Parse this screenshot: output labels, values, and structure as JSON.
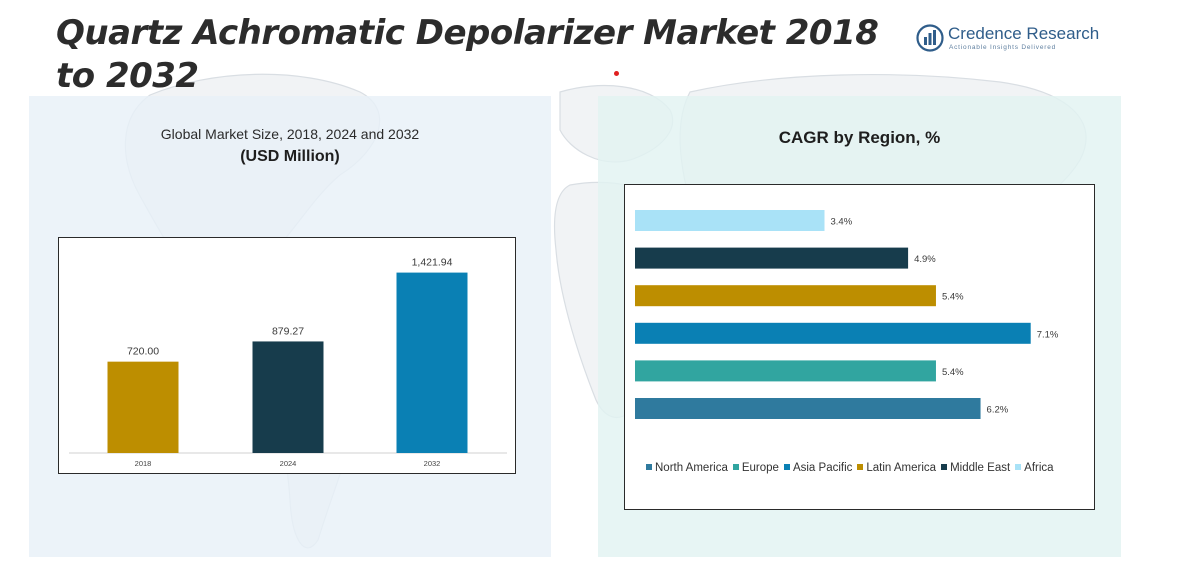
{
  "page": {
    "title": "Quartz Achromatic Depolarizer Market 2018 to 2032"
  },
  "brand": {
    "name": "Credence Research",
    "tagline": "Actionable Insights Delivered",
    "icon": "bar-chart-logo-icon"
  },
  "colors": {
    "gold": "#bd8e00",
    "navy": "#173c4c",
    "blue": "#0a80b4",
    "teal": "#31a5a0",
    "steel": "#2f7a9e",
    "sky": "#a9e2f7",
    "brand": "#2f5d8a"
  },
  "chart_data": [
    {
      "type": "bar",
      "title": "Global Market Size, 2018, 2024 and 2032",
      "subtitle": "(USD Million)",
      "categories": [
        "2018",
        "2024",
        "2032"
      ],
      "values": [
        720.0,
        879.27,
        1421.94
      ],
      "data_labels": [
        "720.00",
        "879.27",
        "1,421.94"
      ],
      "bar_colors": [
        "#bd8e00",
        "#173c4c",
        "#0a80b4"
      ],
      "ylim": [
        0,
        1600
      ],
      "grid": false,
      "legend": "none"
    },
    {
      "type": "bar",
      "orientation": "horizontal",
      "title": "CAGR by Region, %",
      "categories": [
        "Africa",
        "Middle East",
        "Latin America",
        "Asia Pacific",
        "Europe",
        "North America"
      ],
      "values": [
        3.4,
        4.9,
        5.4,
        7.1,
        5.4,
        6.2
      ],
      "data_labels": [
        "3.4%",
        "4.9%",
        "5.4%",
        "7.1%",
        "5.4%",
        "6.2%"
      ],
      "bar_colors": [
        "#a9e2f7",
        "#173c4c",
        "#bd8e00",
        "#0a80b4",
        "#31a5a0",
        "#2f7a9e"
      ],
      "xlim": [
        0,
        7.5
      ],
      "grid": false,
      "legend": "bottom",
      "legend_items": [
        {
          "label": "North America",
          "color": "#2f7a9e"
        },
        {
          "label": "Europe",
          "color": "#31a5a0"
        },
        {
          "label": "Asia Pacific",
          "color": "#0a80b4"
        },
        {
          "label": "Latin America",
          "color": "#bd8e00"
        },
        {
          "label": "Middle East",
          "color": "#173c4c"
        },
        {
          "label": "Africa",
          "color": "#a9e2f7"
        }
      ]
    }
  ]
}
